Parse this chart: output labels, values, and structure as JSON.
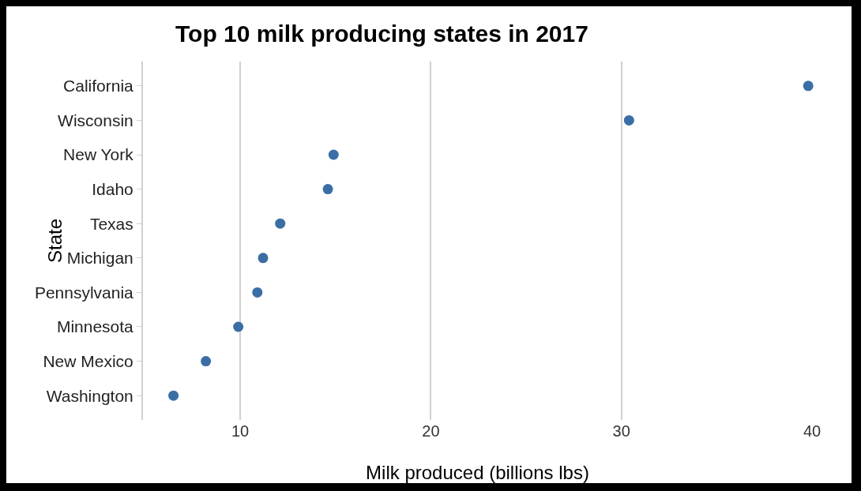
{
  "chart_data": {
    "type": "scatter",
    "orientation": "horizontal",
    "title": "Top 10 milk producing states in 2017",
    "xlabel": "Milk produced (billions lbs)",
    "ylabel": "State",
    "categories": [
      "California",
      "Wisconsin",
      "New York",
      "Idaho",
      "Texas",
      "Michigan",
      "Pennsylvania",
      "Minnesota",
      "New Mexico",
      "Washington"
    ],
    "values": [
      39.8,
      30.4,
      14.9,
      14.6,
      12.1,
      11.2,
      10.9,
      9.9,
      8.2,
      6.5
    ],
    "color": "#3a6ea5",
    "xlim": [
      4.9,
      40
    ],
    "xticks": [
      10,
      20,
      30,
      40
    ],
    "grid": "x",
    "marker": "circle"
  }
}
